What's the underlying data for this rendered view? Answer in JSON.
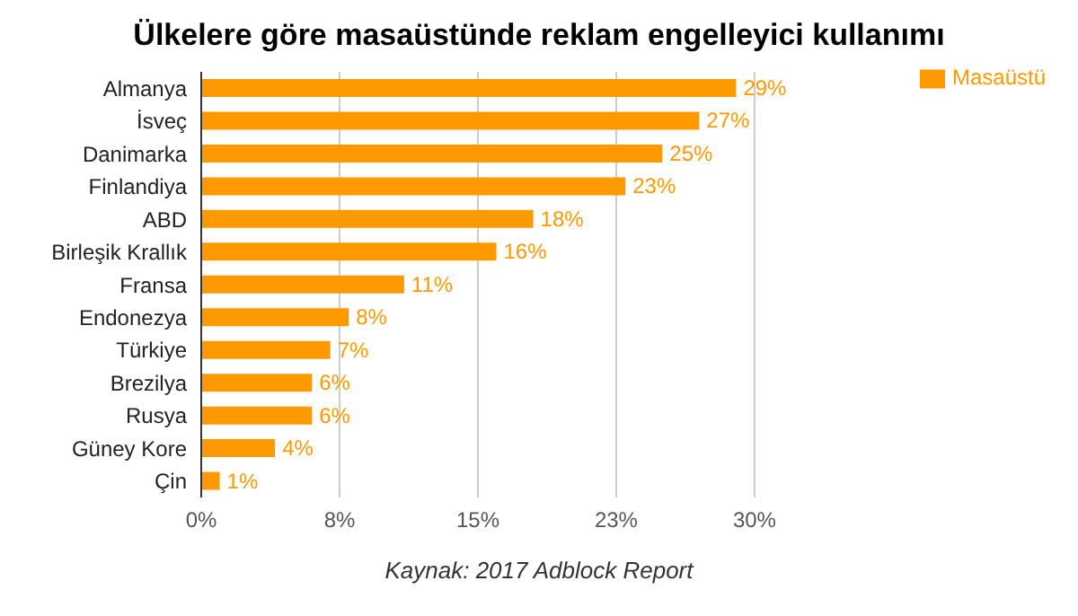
{
  "chart_data": {
    "type": "bar",
    "orientation": "horizontal",
    "title": "Ülkelere göre masaüstünde reklam engelleyici kullanımı",
    "categories": [
      "Almanya",
      "İsveç",
      "Danimarka",
      "Finlandiya",
      "ABD",
      "Birleşik Krallık",
      "Fransa",
      "Endonezya",
      "Türkiye",
      "Brezilya",
      "Rusya",
      "Güney Kore",
      "Çin"
    ],
    "series": [
      {
        "name": "Masaüstü",
        "color": "#ff9900",
        "values": [
          29,
          27,
          25,
          23,
          18,
          16,
          11,
          8,
          7,
          6,
          6,
          4,
          1
        ],
        "value_labels": [
          "29%",
          "27%",
          "25%",
          "23%",
          "18%",
          "16%",
          "11%",
          "8%",
          "7%",
          "6%",
          "6%",
          "4%",
          "1%"
        ]
      }
    ],
    "xlim": [
      0,
      30
    ],
    "xticks": [
      {
        "value": 0,
        "label": "0%"
      },
      {
        "value": 7.5,
        "label": "8%"
      },
      {
        "value": 15,
        "label": "15%"
      },
      {
        "value": 22.5,
        "label": "23%"
      },
      {
        "value": 30,
        "label": "30%"
      }
    ],
    "grid": "x",
    "legend": "top right",
    "annotations": [
      "Kaynak: 2017 Adblock Report"
    ]
  }
}
